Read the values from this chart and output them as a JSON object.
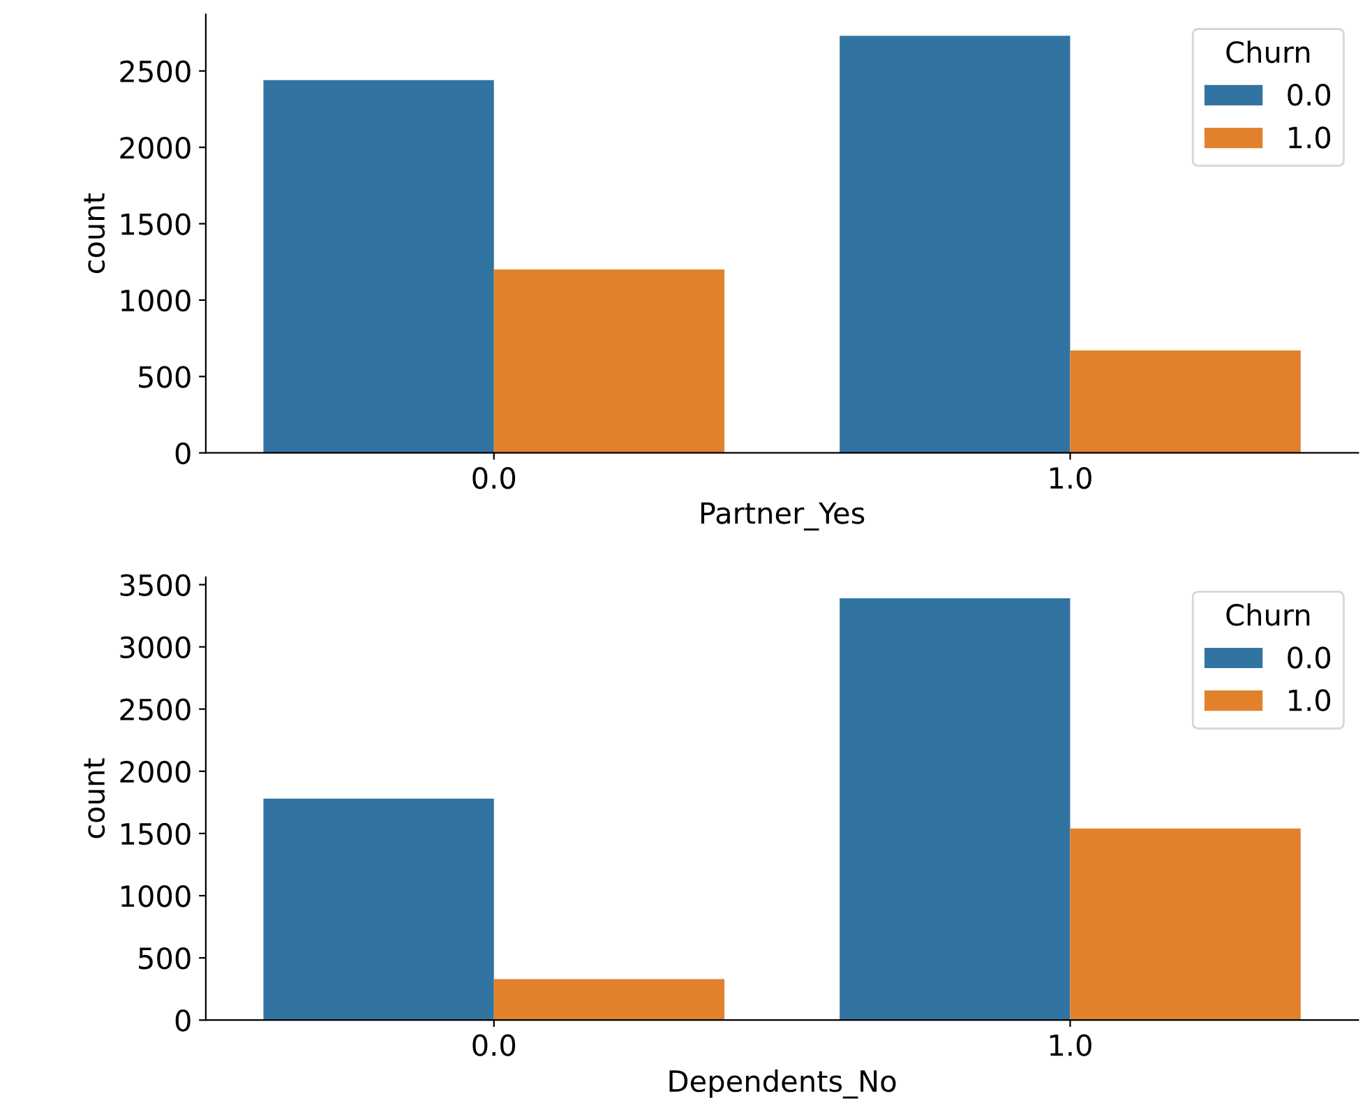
{
  "chart_data": [
    {
      "type": "bar",
      "xlabel": "Partner_Yes",
      "ylabel": "count",
      "legend_title": "Churn",
      "categories": [
        "0.0",
        "1.0"
      ],
      "series": [
        {
          "name": "0.0",
          "color": "#3274a1",
          "values": [
            2440,
            2730
          ]
        },
        {
          "name": "1.0",
          "color": "#e1812c",
          "values": [
            1200,
            670
          ]
        }
      ],
      "ylim": [
        0,
        2870
      ],
      "yticks": [
        0,
        500,
        1000,
        1500,
        2000,
        2500
      ],
      "legend": "top right",
      "grid": false
    },
    {
      "type": "bar",
      "xlabel": "Dependents_No",
      "ylabel": "count",
      "legend_title": "Churn",
      "categories": [
        "0.0",
        "1.0"
      ],
      "series": [
        {
          "name": "0.0",
          "color": "#3274a1",
          "values": [
            1780,
            3390
          ]
        },
        {
          "name": "1.0",
          "color": "#e1812c",
          "values": [
            330,
            1540
          ]
        }
      ],
      "ylim": [
        0,
        3560
      ],
      "yticks": [
        0,
        500,
        1000,
        1500,
        2000,
        2500,
        3000,
        3500
      ],
      "legend": "top right",
      "grid": false
    }
  ]
}
